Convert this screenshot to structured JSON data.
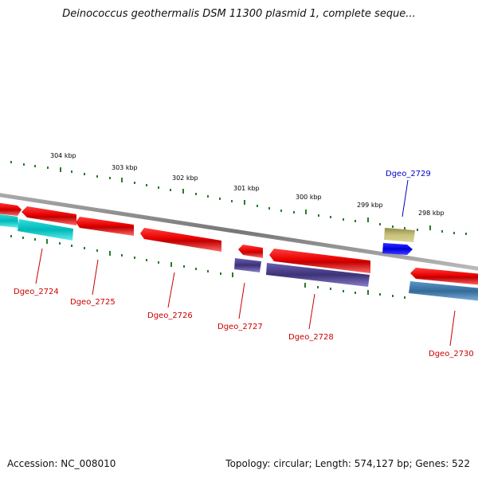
{
  "title": "Deinococcus geothermalis DSM 11300 plasmid 1, complete seque...",
  "footer": {
    "accession": "Accession: NC_008010",
    "stats": "Topology: circular; Length: 574,127 bp; Genes: 522"
  },
  "colors": {
    "forward_gene": "#ff0000",
    "reverse_gene_cyan": "#00cccc",
    "reverse_gene_purple": "#4a3f8c",
    "reverse_gene_blue": "#3f7fb3",
    "highlight_gene": "#0000ff",
    "khaki_feature": "#bdb76b",
    "tick": "#2a7a2a",
    "backbone": "#888888",
    "label_red": "#cc0000",
    "label_blue": "#0000cc"
  },
  "kbp_ticks": [
    "304 kbp",
    "303 kbp",
    "302 kbp",
    "301 kbp",
    "300 kbp",
    "299 kbp",
    "298 kbp"
  ],
  "gene_labels": [
    {
      "name": "Dgeo_2724",
      "color": "red"
    },
    {
      "name": "Dgeo_2725",
      "color": "red"
    },
    {
      "name": "Dgeo_2726",
      "color": "red"
    },
    {
      "name": "Dgeo_2727",
      "color": "red"
    },
    {
      "name": "Dgeo_2728",
      "color": "red"
    },
    {
      "name": "Dgeo_2729",
      "color": "blue"
    },
    {
      "name": "Dgeo_2730",
      "color": "red"
    }
  ]
}
